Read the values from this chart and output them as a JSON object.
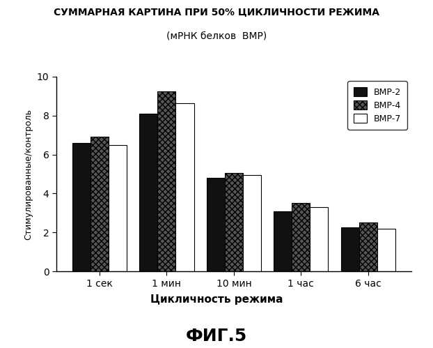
{
  "title": "СУММАРНАЯ КАРТИНА ПРИ 50% ЦИКЛИЧНОСТИ РЕЖИМА",
  "subtitle": "(мРНК белков  ВМР)",
  "xlabel": "Цикличность режима",
  "ylabel": "Стимулированные/контроль",
  "categories": [
    "1 сек",
    "1 мин",
    "10 мин",
    "1 час",
    "6 час"
  ],
  "bmp2": [
    6.6,
    8.1,
    4.8,
    3.1,
    2.25
  ],
  "bmp4": [
    6.9,
    9.25,
    5.05,
    3.5,
    2.5
  ],
  "bmp7": [
    6.5,
    8.65,
    4.95,
    3.3,
    2.2
  ],
  "color_bmp2": "#111111",
  "color_bmp4": "#aaaaaa",
  "color_bmp7": "#ffffff",
  "ylim": [
    0,
    10
  ],
  "yticks": [
    0,
    2,
    4,
    6,
    8,
    10
  ],
  "legend_labels": [
    "ВМР-2",
    "ВМР-4",
    "ВМР-7"
  ],
  "fig_label": "ФИГ.5",
  "background_color": "#ffffff"
}
